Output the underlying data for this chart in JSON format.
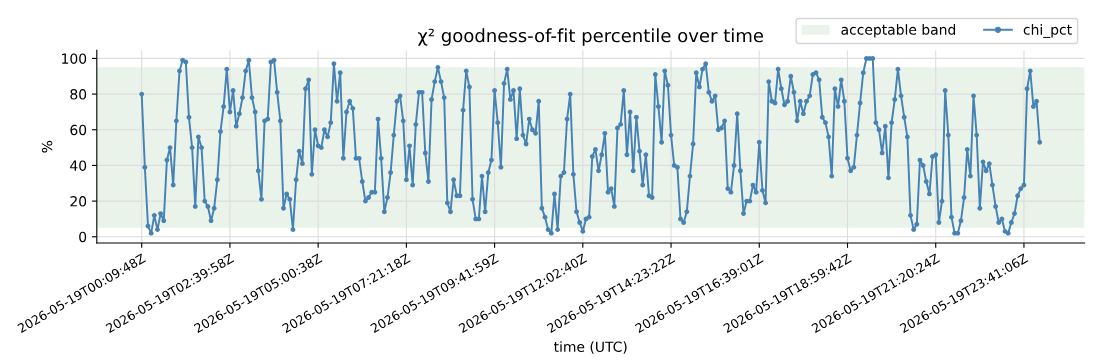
{
  "chart_data": {
    "type": "line",
    "title": "χ² goodness-of-fit percentile over time",
    "xlabel": "time (UTC)",
    "ylabel": "%",
    "categories": [
      "2026-05-19T00:09:48Z",
      null,
      null,
      null,
      null,
      null,
      null,
      null,
      null,
      null,
      null,
      null,
      null,
      null,
      null,
      null,
      null,
      null,
      null,
      null,
      null,
      null,
      null,
      null,
      null,
      null,
      null,
      null,
      "2026-05-19T02:39:58Z",
      null,
      null,
      null,
      null,
      null,
      null,
      null,
      null,
      null,
      null,
      null,
      null,
      null,
      null,
      null,
      null,
      null,
      null,
      null,
      null,
      null,
      null,
      null,
      null,
      null,
      null,
      null,
      "2026-05-19T05:00:38Z",
      null,
      null,
      null,
      null,
      null,
      null,
      null,
      null,
      null,
      null,
      null,
      null,
      null,
      null,
      null,
      null,
      null,
      null,
      null,
      null,
      null,
      null,
      null,
      null,
      null,
      null,
      null,
      "2026-05-19T07:21:18Z",
      null,
      null,
      null,
      null,
      null,
      null,
      null,
      null,
      null,
      null,
      null,
      null,
      null,
      null,
      null,
      null,
      null,
      null,
      null,
      null,
      null,
      null,
      null,
      null,
      null,
      null,
      null,
      "2026-05-19T09:41:59Z",
      null,
      null,
      null,
      null,
      null,
      null,
      null,
      null,
      null,
      null,
      null,
      null,
      null,
      null,
      null,
      null,
      null,
      null,
      null,
      null,
      null,
      null,
      null,
      null,
      null,
      null,
      null,
      "2026-05-19T12:02:40Z",
      null,
      null,
      null,
      null,
      null,
      null,
      null,
      null,
      null,
      null,
      null,
      null,
      null,
      null,
      null,
      null,
      null,
      null,
      null,
      null,
      null,
      null,
      null,
      null,
      null,
      null,
      null,
      "2026-05-19T14:23:22Z",
      null,
      null,
      null,
      null,
      null,
      null,
      null,
      null,
      null,
      null,
      null,
      null,
      null,
      null,
      null,
      null,
      null,
      null,
      null,
      null,
      null,
      null,
      null,
      null,
      null,
      null,
      null,
      "2026-05-19T16:39:01Z",
      null,
      null,
      null,
      null,
      null,
      null,
      null,
      null,
      null,
      null,
      null,
      null,
      null,
      null,
      null,
      null,
      null,
      null,
      null,
      null,
      null,
      null,
      null,
      null,
      null,
      null,
      null,
      "2026-05-19T18:59:42Z",
      null,
      null,
      null,
      null,
      null,
      null,
      null,
      null,
      null,
      null,
      null,
      null,
      null,
      null,
      null,
      null,
      null,
      null,
      null,
      null,
      null,
      null,
      null,
      null,
      null,
      null,
      null,
      "2026-05-19T21:20:24Z",
      null,
      null,
      null,
      null,
      null,
      null,
      null,
      null,
      null,
      null,
      null,
      null,
      null,
      null,
      null,
      null,
      null,
      null,
      null,
      null,
      null,
      null,
      null,
      null,
      null,
      null,
      null,
      "2026-05-19T23:41:06Z",
      null,
      null,
      null,
      null,
      null
    ],
    "series": [
      {
        "name": "chi_pct",
        "color": "#4682b4",
        "values": [
          80,
          39,
          6,
          2,
          12,
          4,
          13,
          9,
          43,
          50,
          29,
          65,
          93,
          99,
          98,
          67,
          50,
          17,
          56,
          50,
          20,
          17,
          9,
          16,
          32,
          59,
          73,
          94,
          70,
          82,
          62,
          69,
          78,
          93,
          99,
          78,
          70,
          37,
          21,
          65,
          66,
          98,
          99,
          81,
          65,
          16,
          24,
          21,
          4,
          32,
          48,
          41,
          83,
          88,
          35,
          60,
          51,
          50,
          60,
          56,
          64,
          97,
          76,
          92,
          44,
          70,
          76,
          72,
          44,
          44,
          31,
          20,
          22,
          25,
          25,
          66,
          44,
          14,
          22,
          36,
          57,
          76,
          79,
          65,
          32,
          51,
          29,
          63,
          81,
          81,
          47,
          31,
          77,
          87,
          95,
          87,
          78,
          19,
          14,
          32,
          23,
          23,
          71,
          93,
          84,
          21,
          10,
          10,
          34,
          14,
          36,
          43,
          82,
          64,
          39,
          86,
          94,
          77,
          82,
          55,
          83,
          57,
          52,
          66,
          60,
          58,
          76,
          16,
          11,
          4,
          2,
          24,
          4,
          34,
          36,
          66,
          80,
          35,
          14,
          8,
          3,
          10,
          11,
          45,
          49,
          37,
          46,
          58,
          25,
          27,
          17,
          61,
          63,
          82,
          46,
          70,
          37,
          67,
          48,
          29,
          46,
          23,
          22,
          91,
          73,
          53,
          93,
          85,
          57,
          40,
          39,
          10,
          8,
          14,
          34,
          52,
          92,
          84,
          94,
          97,
          81,
          76,
          79,
          60,
          61,
          65,
          27,
          25,
          40,
          69,
          37,
          13,
          20,
          20,
          29,
          25,
          53,
          26,
          19,
          87,
          76,
          75,
          94,
          83,
          74,
          76,
          90,
          81,
          65,
          76,
          69,
          76,
          79,
          91,
          92,
          88,
          67,
          64,
          56,
          34,
          83,
          73,
          88,
          76,
          44,
          37,
          39,
          57,
          75,
          92,
          100,
          100,
          100,
          64,
          60,
          47,
          62,
          33,
          64,
          77,
          94,
          79,
          67,
          56,
          12,
          4,
          7,
          43,
          40,
          31,
          24,
          45,
          46,
          8,
          20,
          82,
          57,
          11,
          2,
          2,
          9,
          22,
          49,
          34,
          79,
          57,
          16,
          42,
          37,
          41,
          29,
          17,
          8,
          10,
          3,
          2,
          8,
          13,
          23,
          27,
          29,
          83,
          93,
          73,
          76,
          53
        ]
      }
    ],
    "bands": [
      {
        "axis": "y",
        "from": 5,
        "to": 95,
        "label": "acceptable band",
        "color": "#eaf3ea"
      }
    ],
    "ylim": [
      -3.5,
      104.5
    ],
    "yticks": [
      0,
      20,
      40,
      60,
      80,
      100
    ],
    "grid": true,
    "legend": "top right",
    "marker": "circle",
    "line_style": "solid"
  }
}
